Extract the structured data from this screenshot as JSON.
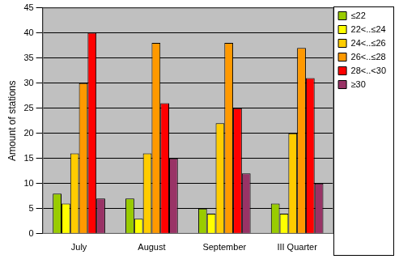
{
  "chart_data": {
    "type": "bar",
    "y_label": "Amount of stations",
    "categories": [
      "July",
      "August",
      "September",
      "III Quarter"
    ],
    "series": [
      {
        "name": "≤22",
        "color": "#99cc00",
        "values": [
          8,
          7,
          5,
          6
        ]
      },
      {
        "name": "22<..≤24",
        "color": "#ffff00",
        "values": [
          6,
          3,
          4,
          4
        ]
      },
      {
        "name": "24<..≤26",
        "color": "#ffcc00",
        "values": [
          16,
          16,
          22,
          20
        ]
      },
      {
        "name": "26<..≤28",
        "color": "#ff9900",
        "values": [
          30,
          38,
          38,
          37
        ]
      },
      {
        "name": "28<..<30",
        "color": "#ff0000",
        "values": [
          40,
          26,
          25,
          31
        ]
      },
      {
        "name": "≥30",
        "color": "#993366",
        "values": [
          7,
          15,
          12,
          10
        ]
      }
    ],
    "ylim": [
      0,
      45
    ],
    "yticks": [
      0,
      5,
      10,
      15,
      20,
      25,
      30,
      35,
      40,
      45
    ],
    "grid": true,
    "legend": "right"
  }
}
